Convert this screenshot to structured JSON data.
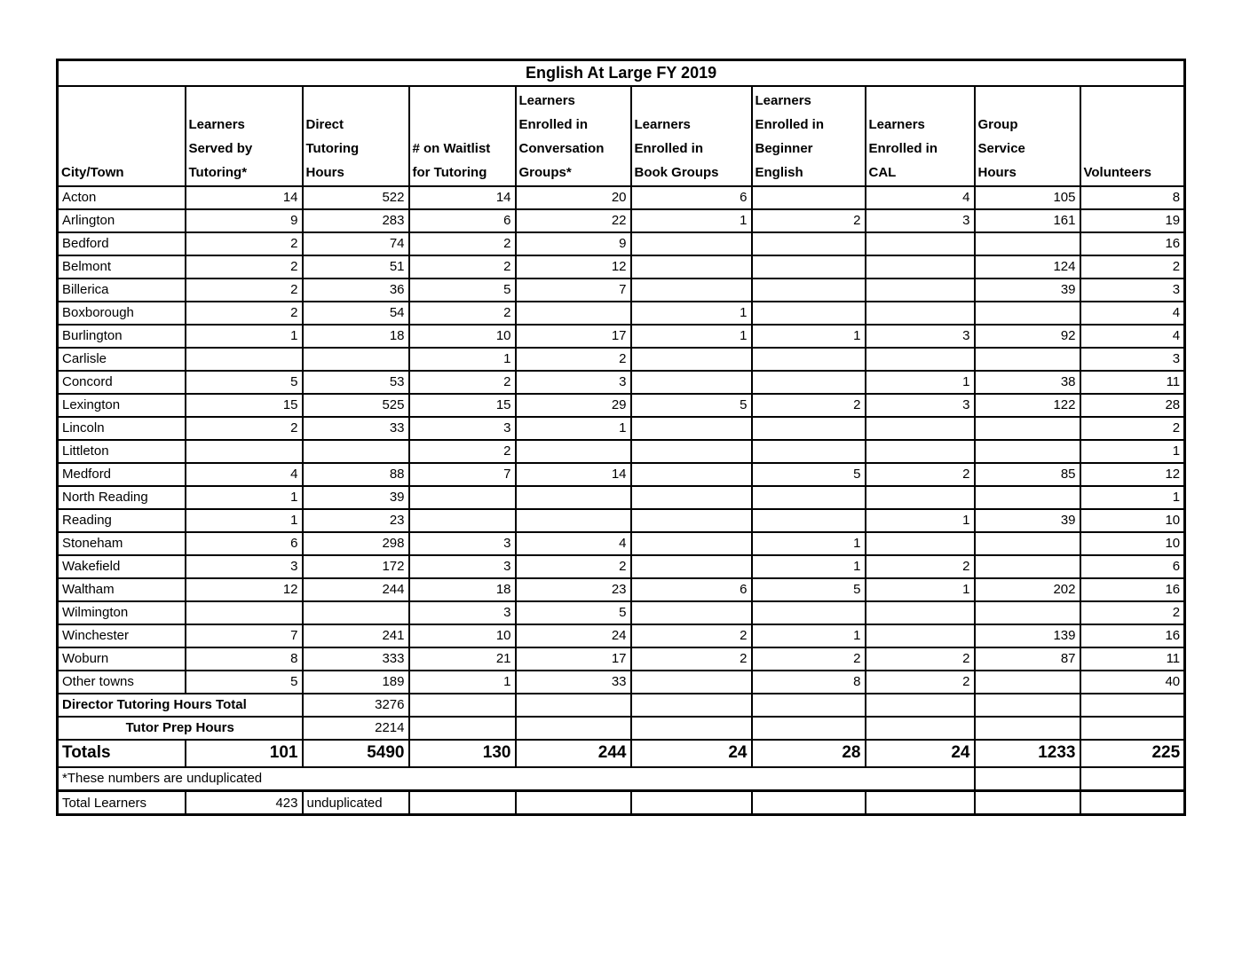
{
  "title": "English At Large FY 2019",
  "table": {
    "columns": [
      "City/Town",
      "Learners\nServed by\nTutoring*",
      "Direct\nTutoring\nHours",
      "# on Waitlist\nfor Tutoring",
      "Learners\nEnrolled in\nConversation\nGroups*",
      "Learners\nEnrolled in\nBook Groups",
      "Learners\nEnrolled in\nBeginner\nEnglish",
      "Learners\nEnrolled in\nCAL",
      "Group\nService\nHours",
      "Volunteers"
    ],
    "rows": [
      [
        "Acton",
        "14",
        "522",
        "14",
        "20",
        "6",
        "",
        "4",
        "105",
        "8"
      ],
      [
        "Arlington",
        "9",
        "283",
        "6",
        "22",
        "1",
        "2",
        "3",
        "161",
        "19"
      ],
      [
        "Bedford",
        "2",
        "74",
        "2",
        "9",
        "",
        "",
        "",
        "",
        "16"
      ],
      [
        "Belmont",
        "2",
        "51",
        "2",
        "12",
        "",
        "",
        "",
        "124",
        "2"
      ],
      [
        "Billerica",
        "2",
        "36",
        "5",
        "7",
        "",
        "",
        "",
        "39",
        "3"
      ],
      [
        "Boxborough",
        "2",
        "54",
        "2",
        "",
        "1",
        "",
        "",
        "",
        "4"
      ],
      [
        "Burlington",
        "1",
        "18",
        "10",
        "17",
        "1",
        "1",
        "3",
        "92",
        "4"
      ],
      [
        "Carlisle",
        "",
        "",
        "1",
        "2",
        "",
        "",
        "",
        "",
        "3"
      ],
      [
        "Concord",
        "5",
        "53",
        "2",
        "3",
        "",
        "",
        "1",
        "38",
        "11"
      ],
      [
        "Lexington",
        "15",
        "525",
        "15",
        "29",
        "5",
        "2",
        "3",
        "122",
        "28"
      ],
      [
        "Lincoln",
        "2",
        "33",
        "3",
        "1",
        "",
        "",
        "",
        "",
        "2"
      ],
      [
        "Littleton",
        "",
        "",
        "2",
        "",
        "",
        "",
        "",
        "",
        "1"
      ],
      [
        "Medford",
        "4",
        "88",
        "7",
        "14",
        "",
        "5",
        "2",
        "85",
        "12"
      ],
      [
        "North Reading",
        "1",
        "39",
        "",
        "",
        "",
        "",
        "",
        "",
        "1"
      ],
      [
        "Reading",
        "1",
        "23",
        "",
        "",
        "",
        "",
        "1",
        "39",
        "10"
      ],
      [
        "Stoneham",
        "6",
        "298",
        "3",
        "4",
        "",
        "1",
        "",
        "",
        "10"
      ],
      [
        "Wakefield",
        "3",
        "172",
        "3",
        "2",
        "",
        "1",
        "2",
        "",
        "6"
      ],
      [
        "Waltham",
        "12",
        "244",
        "18",
        "23",
        "6",
        "5",
        "1",
        "202",
        "16"
      ],
      [
        "Wilmington",
        "",
        "",
        "3",
        "5",
        "",
        "",
        "",
        "",
        "2"
      ],
      [
        "Winchester",
        "7",
        "241",
        "10",
        "24",
        "2",
        "1",
        "",
        "139",
        "16"
      ],
      [
        "Woburn",
        "8",
        "333",
        "21",
        "17",
        "2",
        "2",
        "2",
        "87",
        "11"
      ],
      [
        "Other towns",
        "5",
        "189",
        "1",
        "33",
        "",
        "8",
        "2",
        "",
        "40"
      ]
    ],
    "director_row": {
      "label": "Director Tutoring Hours Total",
      "value": "3276"
    },
    "tutor_prep_row": {
      "label": "Tutor Prep Hours",
      "value": "2214"
    },
    "totals_row": {
      "label": "Totals",
      "values": [
        "101",
        "5490",
        "130",
        "244",
        "24",
        "28",
        "24",
        "1233",
        "225"
      ]
    },
    "footnote": "*These numbers are unduplicated",
    "total_learners_row": {
      "label": "Total Learners",
      "value": "423",
      "note": "unduplicated"
    }
  }
}
